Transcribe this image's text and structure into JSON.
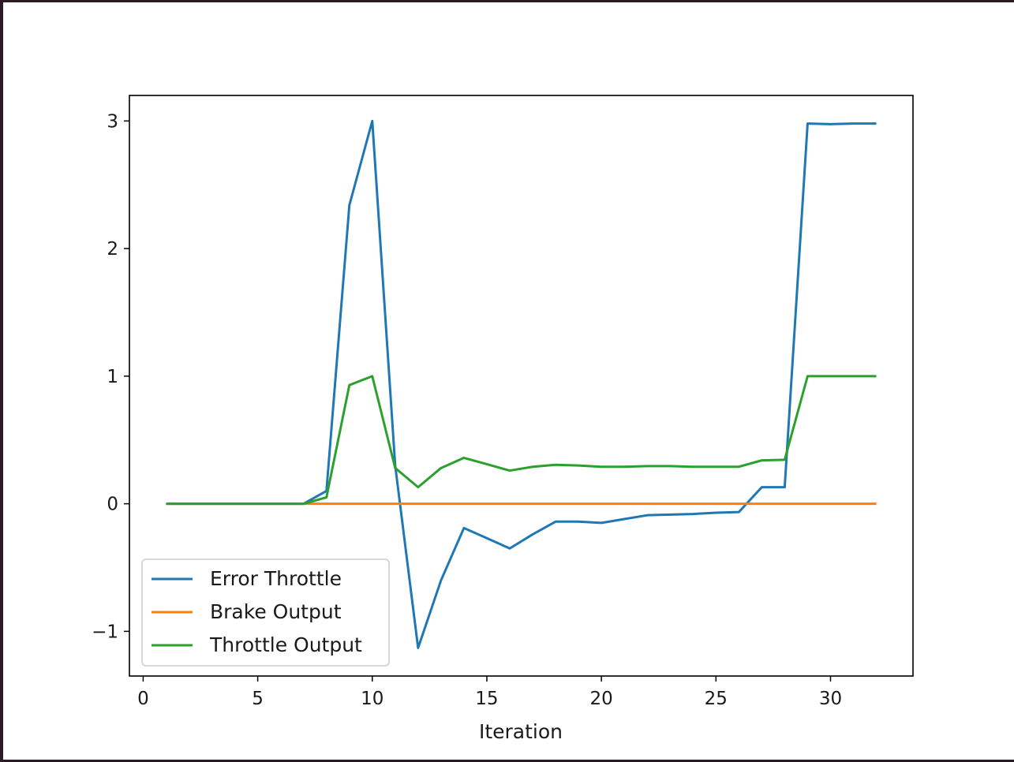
{
  "chart_data": {
    "type": "line",
    "title": "",
    "xlabel": "Iteration",
    "ylabel": "",
    "xlim": [
      -0.6,
      33.6
    ],
    "ylim": [
      -1.35,
      3.2
    ],
    "xticks": [
      0,
      5,
      10,
      15,
      20,
      25,
      30
    ],
    "xtick_labels": [
      "0",
      "5",
      "10",
      "15",
      "20",
      "25",
      "30"
    ],
    "yticks": [
      -1,
      0,
      1,
      2,
      3
    ],
    "ytick_labels": [
      "−1",
      "0",
      "1",
      "2",
      "3"
    ],
    "grid": false,
    "legend_position": "lower-left",
    "x": [
      1,
      2,
      3,
      4,
      5,
      6,
      7,
      8,
      9,
      10,
      11,
      12,
      13,
      14,
      15,
      16,
      17,
      18,
      19,
      20,
      21,
      22,
      23,
      24,
      25,
      26,
      27,
      28,
      29,
      30,
      31,
      32
    ],
    "series": [
      {
        "name": "Error Throttle",
        "color": "#1f77b4",
        "values": [
          0,
          0,
          0,
          0,
          0,
          0,
          0,
          0.1,
          2.34,
          3.0,
          0.3,
          -1.13,
          -0.6,
          -0.19,
          -0.27,
          -0.35,
          -0.24,
          -0.14,
          -0.14,
          -0.15,
          -0.12,
          -0.09,
          -0.085,
          -0.08,
          -0.07,
          -0.065,
          0.13,
          0.13,
          2.98,
          2.975,
          2.98,
          2.98
        ]
      },
      {
        "name": "Brake Output",
        "color": "#ff7f0e",
        "values": [
          0,
          0,
          0,
          0,
          0,
          0,
          0,
          0,
          0,
          0,
          0,
          0,
          0,
          0,
          0,
          0,
          0,
          0,
          0,
          0,
          0,
          0,
          0,
          0,
          0,
          0,
          0,
          0,
          0,
          0,
          0,
          0
        ]
      },
      {
        "name": "Throttle Output",
        "color": "#2ca02c",
        "values": [
          0,
          0,
          0,
          0,
          0,
          0,
          0,
          0.05,
          0.93,
          1.0,
          0.28,
          0.13,
          0.28,
          0.36,
          0.31,
          0.26,
          0.29,
          0.305,
          0.3,
          0.29,
          0.29,
          0.295,
          0.295,
          0.29,
          0.29,
          0.29,
          0.34,
          0.345,
          1.0,
          1.0,
          1.0,
          1.0
        ]
      }
    ]
  }
}
